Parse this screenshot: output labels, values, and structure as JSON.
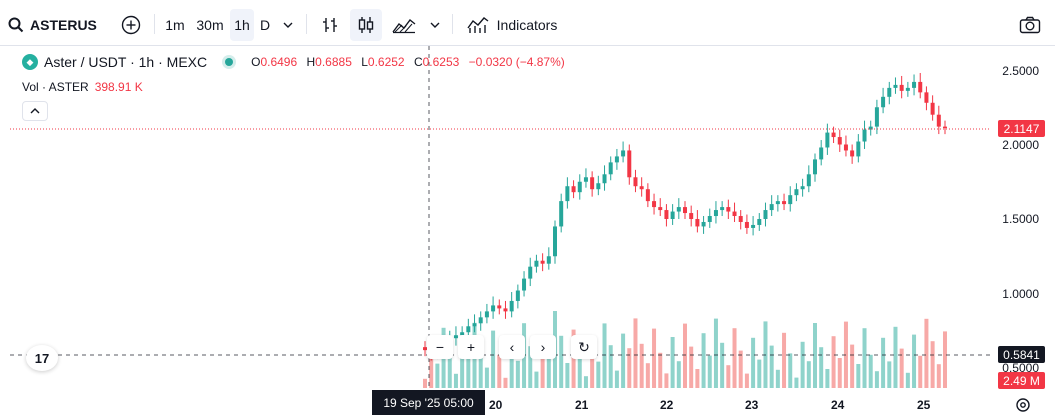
{
  "toolbar": {
    "symbol": "ASTERUS",
    "intervals": [
      "1m",
      "30m",
      "1h",
      "D"
    ],
    "active_interval": "1h",
    "indicators_label": "Indicators"
  },
  "legend": {
    "pair": "Aster / USDT · 1h · MEXC",
    "open_key": "O",
    "open": "0.6496",
    "high_key": "H",
    "high": "0.6885",
    "low_key": "L",
    "low": "0.6252",
    "close_key": "C",
    "close": "0.6253",
    "change": "−0.0320 (−4.87%)",
    "vol_label": "Vol · ASTER",
    "vol_value": "398.91 K"
  },
  "price_scale": {
    "labels": [
      "2.5000",
      "2.0000",
      "1.5000",
      "1.0000",
      "0.5000"
    ],
    "last_price": "2.1147",
    "crosshair_price": "0.5841",
    "volume_tag": "2.49 M"
  },
  "time_scale": {
    "labels": [
      "20",
      "21",
      "22",
      "23",
      "24",
      "25"
    ],
    "crosshair_time": "19 Sep '25   05:00"
  },
  "colors": {
    "up": "#26a69a",
    "down": "#f23645",
    "up_volume": "#8fd3cb",
    "down_volume": "#f7a9a7"
  },
  "chart_data": {
    "type": "candlestick",
    "ylim": [
      0.5,
      2.5
    ],
    "series": [
      {
        "name": "price",
        "values": [
          0.62,
          0.6,
          0.64,
          0.66,
          0.7,
          0.72,
          0.74,
          0.78,
          0.8,
          0.84,
          0.88,
          0.92,
          0.9,
          0.88,
          0.95,
          1.02,
          1.1,
          1.18,
          1.22,
          1.2,
          1.25,
          1.45,
          1.62,
          1.72,
          1.68,
          1.75,
          1.78,
          1.7,
          1.74,
          1.8,
          1.88,
          1.92,
          1.96,
          1.78,
          1.72,
          1.7,
          1.62,
          1.58,
          1.56,
          1.5,
          1.55,
          1.58,
          1.54,
          1.5,
          1.45,
          1.48,
          1.52,
          1.56,
          1.58,
          1.55,
          1.52,
          1.48,
          1.44,
          1.46,
          1.5,
          1.56,
          1.6,
          1.62,
          1.6,
          1.66,
          1.7,
          1.72,
          1.8,
          1.9,
          1.98,
          2.08,
          2.05,
          2.0,
          1.96,
          1.92,
          2.02,
          2.1,
          2.12,
          2.25,
          2.32,
          2.38,
          2.4,
          2.36,
          2.38,
          2.42,
          2.35,
          2.28,
          2.2,
          2.12,
          2.11
        ]
      }
    ]
  }
}
